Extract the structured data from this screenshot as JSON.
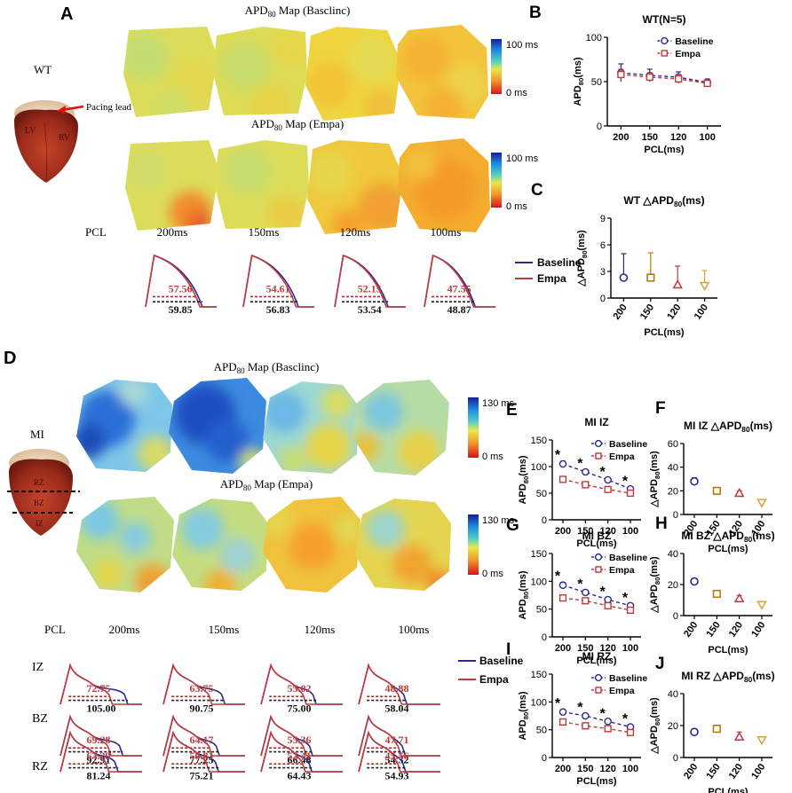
{
  "colors": {
    "baseline": "#2b2a8c",
    "empa": "#c0393b",
    "dash_base": "#1d1d2e",
    "dash_empa": "#b8282c"
  },
  "heart_labels": {
    "wt": "WT",
    "pacing_lead": "Pacing lead",
    "lv": "LV",
    "rv": "RV",
    "mi": "MI",
    "rz": "RZ",
    "bz": "BZ",
    "iz": "IZ"
  },
  "panelA": {
    "letter": "A",
    "title_base_pre": "APD",
    "title_base_sub": "80",
    "title_base_post": " Map (Basclinc)",
    "title_empa_pre": "APD",
    "title_empa_sub": "80",
    "title_empa_post": " Map (Empa)",
    "scale_max": "100 ms",
    "scale_min": "0 ms",
    "pcl_label": "PCL",
    "pcl": [
      "200ms",
      "150ms",
      "120ms",
      "100ms"
    ],
    "trace_values": [
      {
        "empa": "57.56",
        "base": "59.85"
      },
      {
        "empa": "54.61",
        "base": "56.83"
      },
      {
        "empa": "52.15",
        "base": "53.54"
      },
      {
        "empa": "47.55",
        "base": "48.87"
      }
    ],
    "legend": {
      "baseline": "Baseline",
      "empa": "Empa"
    }
  },
  "panelD": {
    "letter": "D",
    "title_base_pre": "APD",
    "title_base_sub": "80",
    "title_base_post": " Map (Basclinc)",
    "title_empa_pre": "APD",
    "title_empa_sub": "80",
    "title_empa_post": " Map (Empa)",
    "scale_max": "130 ms",
    "scale_min": "0 ms",
    "pcl_label": "PCL",
    "pcl": [
      "200ms",
      "150ms",
      "120ms",
      "100ms"
    ],
    "rows": [
      {
        "label": "IZ",
        "values": [
          {
            "empa": "72.75",
            "base": "105.00"
          },
          {
            "empa": "63.75",
            "base": "90.75"
          },
          {
            "empa": "55.02",
            "base": "75.00"
          },
          {
            "empa": "48.88",
            "base": "58.04"
          }
        ]
      },
      {
        "label": "BZ",
        "values": [
          {
            "empa": "69.28",
            "base": "92.91"
          },
          {
            "empa": "64.17",
            "base": "77.25"
          },
          {
            "empa": "55.36",
            "base": "66.48"
          },
          {
            "empa": "47.71",
            "base": "54.32"
          }
        ]
      },
      {
        "label": "RZ",
        "values": [
          {
            "empa": "63.29",
            "base": "81.24"
          },
          {
            "empa": "56.81",
            "base": "75.21"
          },
          {
            "empa": "52.41",
            "base": "64.43"
          },
          {
            "empa": "45.56",
            "base": "54.93"
          }
        ]
      }
    ],
    "legend": {
      "baseline": "Baseline",
      "empa": "Empa"
    }
  },
  "chart_data": [
    {
      "id": "B",
      "letter": "B",
      "type": "line",
      "title": "WT(N=5)",
      "xlabel": "PCL(ms)",
      "ylabel_pre": "APD",
      "ylabel_sub": "80",
      "ylabel_post": "(ms)",
      "categories": [
        "200",
        "150",
        "120",
        "100"
      ],
      "ylim": [
        0,
        100
      ],
      "yticks": [
        "0",
        "50",
        "100"
      ],
      "series": [
        {
          "name": "Baseline",
          "values": [
            60,
            57,
            55,
            49
          ],
          "err": [
            10,
            7,
            6,
            4
          ]
        },
        {
          "name": "Empa",
          "values": [
            58,
            55,
            53,
            48
          ],
          "err": [
            6,
            5,
            5,
            4
          ]
        }
      ],
      "legend": [
        "Baseline",
        "Empa"
      ]
    },
    {
      "id": "C",
      "letter": "C",
      "type": "scatter",
      "title_pre": "WT  △APD",
      "title_sub": "80",
      "title_post": "(ms)",
      "xlabel": "PCL(ms)",
      "ylabel_pre": "△APD",
      "ylabel_sub": "80",
      "ylabel_post": "(ms)",
      "categories": [
        "200",
        "150",
        "120",
        "100"
      ],
      "ylim": [
        0,
        9
      ],
      "yticks": [
        "0",
        "3",
        "6",
        "9"
      ],
      "values": [
        2.3,
        2.3,
        1.5,
        1.4
      ],
      "err": [
        2.7,
        2.8,
        2.1,
        1.7
      ],
      "point_colors": [
        "#2b2a8c",
        "#b87a10",
        "#c0393b",
        "#d8a040"
      ]
    },
    {
      "id": "E",
      "letter": "E",
      "type": "line",
      "title": "MI IZ",
      "xlabel": "PCL(ms)",
      "ylabel_pre": "APD",
      "ylabel_sub": "80",
      "ylabel_post": "(ms)",
      "categories": [
        "200",
        "150",
        "120",
        "100"
      ],
      "ylim": [
        0,
        150
      ],
      "yticks": [
        "0",
        "50",
        "100",
        "150"
      ],
      "series": [
        {
          "name": "Baseline",
          "values": [
            105,
            90,
            75,
            58
          ],
          "err": [
            5,
            4,
            3,
            3
          ]
        },
        {
          "name": "Empa",
          "values": [
            76,
            66,
            57,
            50
          ],
          "err": [
            5,
            4,
            3,
            3
          ]
        }
      ],
      "stars": [
        "*",
        "*",
        "*",
        "*"
      ],
      "legend": [
        "Baseline",
        "Empa"
      ]
    },
    {
      "id": "F",
      "letter": "F",
      "type": "scatter",
      "title_pre": "MI IZ  △APD",
      "title_sub": "80",
      "title_post": "(ms)",
      "xlabel": "PCL(ms)",
      "ylabel_pre": "△APD",
      "ylabel_sub": "80",
      "ylabel_post": "(ms)",
      "categories": [
        "200",
        "150",
        "120",
        "100"
      ],
      "ylim": [
        0,
        60
      ],
      "yticks": [
        "0",
        "20",
        "40",
        "60"
      ],
      "values": [
        28,
        20,
        18,
        10
      ],
      "err": [
        3,
        2,
        2,
        1
      ],
      "point_colors": [
        "#2b2a8c",
        "#b87a10",
        "#c0393b",
        "#d8a040"
      ]
    },
    {
      "id": "G",
      "letter": "G",
      "type": "line",
      "title": "MI BZ",
      "xlabel": "PCL(ms)",
      "ylabel_pre": "APD",
      "ylabel_sub": "80",
      "ylabel_post": "(ms)",
      "categories": [
        "200",
        "150",
        "120",
        "100"
      ],
      "ylim": [
        0,
        150
      ],
      "yticks": [
        "0",
        "50",
        "100",
        "150"
      ],
      "series": [
        {
          "name": "Baseline",
          "values": [
            93,
            80,
            67,
            56
          ],
          "err": [
            5,
            4,
            3,
            3
          ]
        },
        {
          "name": "Empa",
          "values": [
            70,
            65,
            56,
            48
          ],
          "err": [
            4,
            4,
            3,
            3
          ]
        }
      ],
      "stars": [
        "*",
        "*",
        "*",
        "*"
      ],
      "legend": [
        "Baseline",
        "Empa"
      ]
    },
    {
      "id": "H",
      "letter": "H",
      "type": "scatter",
      "title_pre": "MI BZ △APD",
      "title_sub": "80",
      "title_post": "(ms)",
      "xlabel": "PCL(ms)",
      "ylabel_pre": "△APD",
      "ylabel_sub": "80",
      "ylabel_post": "(ms)",
      "categories": [
        "200",
        "150",
        "120",
        "100"
      ],
      "ylim": [
        0,
        40
      ],
      "yticks": [
        "0",
        "20",
        "40"
      ],
      "values": [
        22,
        14,
        11,
        7
      ],
      "err": [
        2,
        2,
        2,
        1
      ],
      "point_colors": [
        "#2b2a8c",
        "#b87a10",
        "#c0393b",
        "#d8a040"
      ]
    },
    {
      "id": "I",
      "letter": "I",
      "type": "line",
      "title": "MI RZ",
      "xlabel": "PCL(ms)",
      "ylabel_pre": "APD",
      "ylabel_sub": "80",
      "ylabel_post": "(ms)",
      "categories": [
        "200",
        "150",
        "120",
        "100"
      ],
      "ylim": [
        0,
        150
      ],
      "yticks": [
        "0",
        "50",
        "100",
        "150"
      ],
      "series": [
        {
          "name": "Baseline",
          "values": [
            82,
            75,
            65,
            55
          ],
          "err": [
            4,
            4,
            3,
            3
          ]
        },
        {
          "name": "Empa",
          "values": [
            64,
            57,
            52,
            45
          ],
          "err": [
            4,
            3,
            3,
            3
          ]
        }
      ],
      "stars": [
        "*",
        "*",
        "*",
        "*"
      ],
      "legend": [
        "Baseline",
        "Empa"
      ]
    },
    {
      "id": "J",
      "letter": "J",
      "type": "scatter",
      "title_pre": "MI RZ  △APD",
      "title_sub": "80",
      "title_post": "(ms)",
      "xlabel": "PCL(ms)",
      "ylabel_pre": "△APD",
      "ylabel_sub": "80",
      "ylabel_post": "(ms)",
      "categories": [
        "200",
        "150",
        "120",
        "100"
      ],
      "ylim": [
        0,
        40
      ],
      "yticks": [
        "0",
        "20",
        "40"
      ],
      "values": [
        16,
        18,
        13,
        11
      ],
      "err": [
        2,
        2,
        3,
        1
      ],
      "point_colors": [
        "#2b2a8c",
        "#b87a10",
        "#c0393b",
        "#d8a040"
      ]
    }
  ]
}
